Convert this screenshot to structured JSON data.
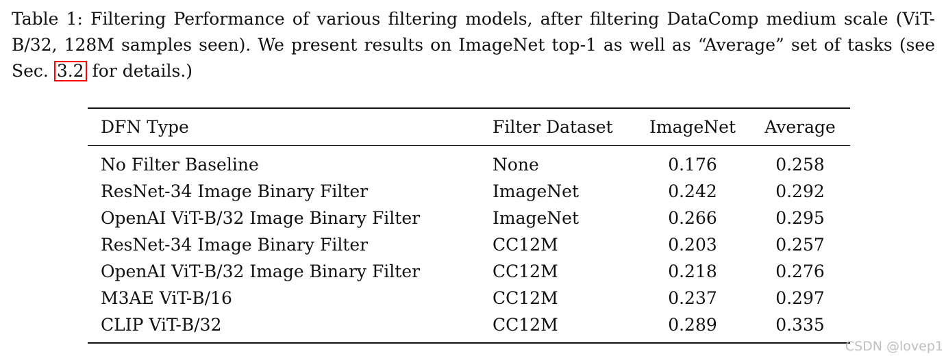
{
  "caption": {
    "text_before_ref": "Table 1: Filtering Performance of various filtering models, after filtering DataComp medium scale (ViT-B/32, 128M samples seen). We present results on ImageNet top-1 as well as “Average” set of tasks (see Sec.",
    "ref": "3.2",
    "text_after_ref": "for details.)",
    "ref_box_color": "#ff0000"
  },
  "table": {
    "headers": {
      "type": "DFN Type",
      "dataset": "Filter Dataset",
      "imagenet": "ImageNet",
      "average": "Average"
    },
    "rows": [
      {
        "type": "No Filter Baseline",
        "dataset": "None",
        "imagenet": "0.176",
        "average": "0.258"
      },
      {
        "type": "ResNet-34 Image Binary Filter",
        "dataset": "ImageNet",
        "imagenet": "0.242",
        "average": "0.292"
      },
      {
        "type": "OpenAI ViT-B/32 Image Binary Filter",
        "dataset": "ImageNet",
        "imagenet": "0.266",
        "average": "0.295"
      },
      {
        "type": "ResNet-34 Image Binary Filter",
        "dataset": "CC12M",
        "imagenet": "0.203",
        "average": "0.257"
      },
      {
        "type": "OpenAI ViT-B/32 Image Binary Filter",
        "dataset": "CC12M",
        "imagenet": "0.218",
        "average": "0.276"
      },
      {
        "type": "M3AE ViT-B/16",
        "dataset": "CC12M",
        "imagenet": "0.237",
        "average": "0.297"
      },
      {
        "type": "CLIP ViT-B/32",
        "dataset": "CC12M",
        "imagenet": "0.289",
        "average": "0.335"
      }
    ]
  },
  "watermark": "CSDN @lovep1"
}
